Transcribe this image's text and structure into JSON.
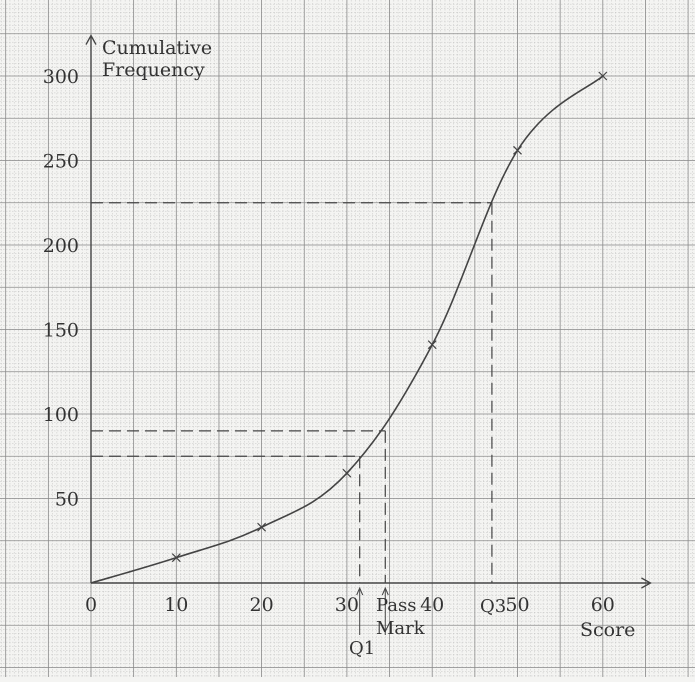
{
  "chart_data": {
    "type": "line",
    "ylabel_line1": "Cumulative",
    "ylabel_line2": "Frequency",
    "xlabel": "Score",
    "x_ticks": [
      0,
      10,
      20,
      30,
      40,
      50,
      60
    ],
    "y_ticks": [
      50,
      100,
      150,
      200,
      250,
      300
    ],
    "xlim": [
      0,
      65
    ],
    "ylim": [
      0,
      305
    ],
    "grid": true,
    "points": [
      {
        "x": 0,
        "y": 0
      },
      {
        "x": 10,
        "y": 15
      },
      {
        "x": 20,
        "y": 33
      },
      {
        "x": 30,
        "y": 65
      },
      {
        "x": 40,
        "y": 141
      },
      {
        "x": 50,
        "y": 256
      },
      {
        "x": 60,
        "y": 300
      }
    ],
    "reference_lines": [
      {
        "name": "q1",
        "y": 75,
        "x": 31.5
      },
      {
        "name": "pass-mark",
        "y": 90,
        "x": 34.5
      },
      {
        "name": "q3",
        "y": 225,
        "x": 47
      }
    ],
    "annotations": {
      "q1": "Q1",
      "pass_line1": "Pass",
      "pass_line2": "Mark",
      "q3": "Q3"
    },
    "colors": {
      "grid_minor": "#b8b8b8",
      "grid_major": "#8a8a8a",
      "curve": "#444444",
      "axis": "#444444"
    }
  }
}
